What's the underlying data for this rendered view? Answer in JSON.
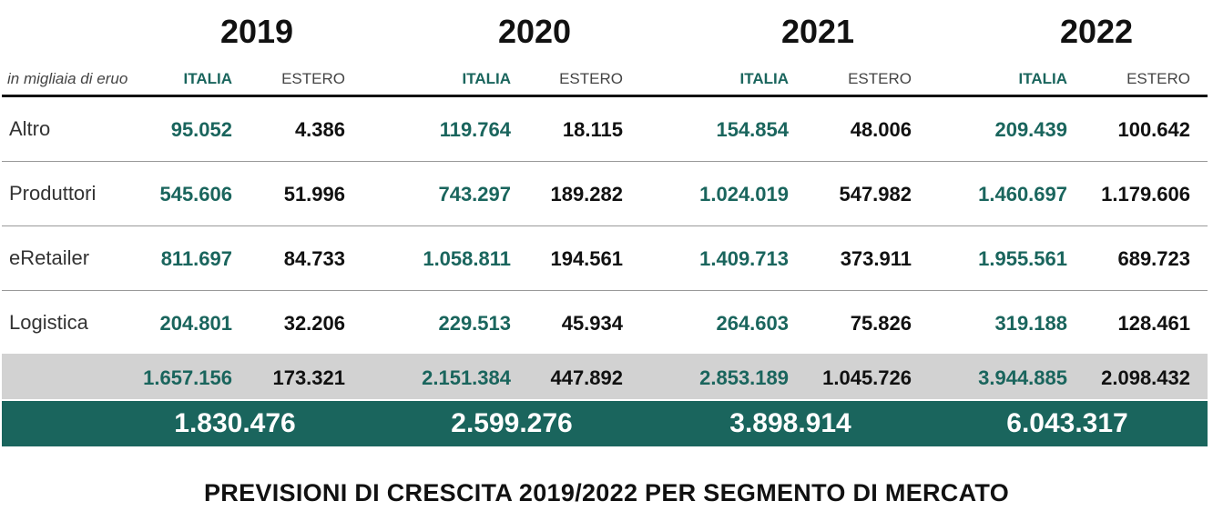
{
  "chart_data": {
    "type": "table",
    "unit_label": "in migliaia di eruo",
    "years": [
      "2019",
      "2020",
      "2021",
      "2022"
    ],
    "column_labels": {
      "italia": "ITALIA",
      "estero": "ESTERO"
    },
    "rows": [
      {
        "label": "Altro",
        "values": [
          [
            "95.052",
            "4.386"
          ],
          [
            "119.764",
            "18.115"
          ],
          [
            "154.854",
            "48.006"
          ],
          [
            "209.439",
            "100.642"
          ]
        ]
      },
      {
        "label": "Produttori",
        "values": [
          [
            "545.606",
            "51.996"
          ],
          [
            "743.297",
            "189.282"
          ],
          [
            "1.024.019",
            "547.982"
          ],
          [
            "1.460.697",
            "1.179.606"
          ]
        ]
      },
      {
        "label": "eRetailer",
        "values": [
          [
            "811.697",
            "84.733"
          ],
          [
            "1.058.811",
            "194.561"
          ],
          [
            "1.409.713",
            "373.911"
          ],
          [
            "1.955.561",
            "689.723"
          ]
        ]
      },
      {
        "label": "Logistica",
        "values": [
          [
            "204.801",
            "32.206"
          ],
          [
            "229.513",
            "45.934"
          ],
          [
            "264.603",
            "75.826"
          ],
          [
            "319.188",
            "128.461"
          ]
        ]
      }
    ],
    "subtotals": [
      [
        "1.657.156",
        "173.321"
      ],
      [
        "2.151.384",
        "447.892"
      ],
      [
        "2.853.189",
        "1.045.726"
      ],
      [
        "3.944.885",
        "2.098.432"
      ]
    ],
    "totals": [
      "1.830.476",
      "2.599.276",
      "3.898.914",
      "6.043.317"
    ],
    "caption": "PREVISIONI DI CRESCITA 2019/2022 PER SEGMENTO DI MERCATO",
    "colors": {
      "italia": "#1a655d",
      "estero": "#111111",
      "subtotal_bg": "#d2d2d2",
      "total_bg": "#1a655d"
    }
  }
}
